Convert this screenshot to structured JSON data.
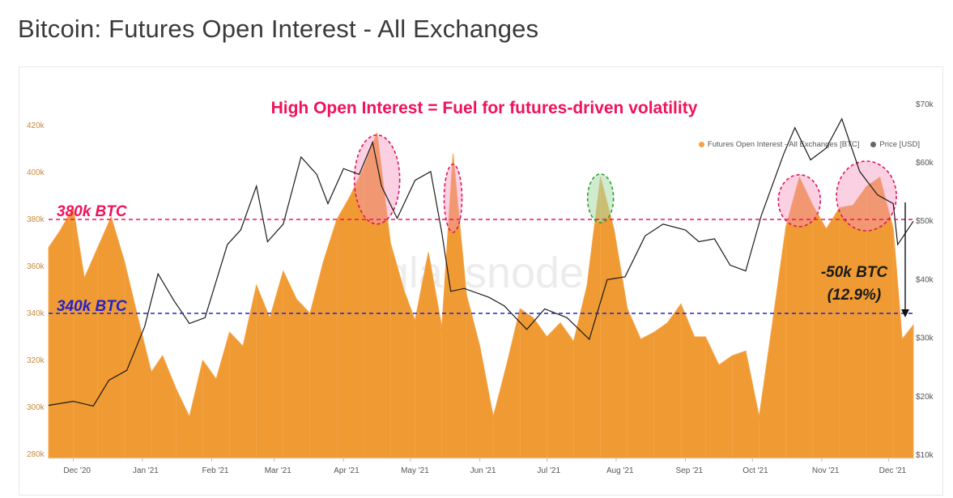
{
  "page": {
    "title": "Bitcoin: Futures Open Interest - All Exchanges"
  },
  "legend": {
    "oi_label": "Futures Open Interest - All Exchanges [BTC]",
    "price_label": "Price [USD]"
  },
  "annotations": {
    "headline": "High Open Interest = Fuel for futures-driven volatility",
    "line_380": "380k BTC",
    "line_340": "340k BTC",
    "drop_line1": "-50k BTC",
    "drop_line2": "(12.9%)",
    "watermark": "glassnode"
  },
  "colors": {
    "oi": "#f5a347",
    "oi_fill": "#ef9a33",
    "price": "#1a1a1a",
    "red_dashed": "#f0125a",
    "blue_dashed": "#2222cc",
    "pink_circle_fill": "rgba(245,150,190,0.45)",
    "green_circle_fill": "rgba(170,220,170,0.55)"
  },
  "chart_data": {
    "type": "area",
    "title": "Bitcoin: Futures Open Interest - All Exchanges",
    "x_ticks": [
      "Dec '20",
      "Jan '21",
      "Feb '21",
      "Mar '21",
      "Apr '21",
      "May '21",
      "Jun '21",
      "Jul '21",
      "Aug '21",
      "Sep '21",
      "Oct '21",
      "Nov '21",
      "Dec '21"
    ],
    "y_left_ticks": [
      "280k",
      "300k",
      "320k",
      "340k",
      "360k",
      "380k",
      "400k",
      "420k"
    ],
    "y_left_range": [
      280000,
      430000
    ],
    "y_right_ticks": [
      "$10k",
      "$20k",
      "$30k",
      "$40k",
      "$50k",
      "$60k",
      "$70k"
    ],
    "y_right_range": [
      10000,
      70000
    ],
    "reference_lines": [
      {
        "label": "380k BTC",
        "value": 380000
      },
      {
        "label": "340k BTC",
        "value": 340000
      }
    ],
    "series": [
      {
        "name": "Futures Open Interest - All Exchanges [BTC]",
        "axis": "left",
        "x": [
          "2020-11-20",
          "2020-11-25",
          "2020-12-01",
          "2020-12-06",
          "2020-12-12",
          "2020-12-18",
          "2020-12-24",
          "2020-12-30",
          "2021-01-05",
          "2021-01-10",
          "2021-01-16",
          "2021-01-22",
          "2021-01-28",
          "2021-02-03",
          "2021-02-09",
          "2021-02-15",
          "2021-02-21",
          "2021-02-27",
          "2021-03-05",
          "2021-03-11",
          "2021-03-17",
          "2021-03-23",
          "2021-03-29",
          "2021-04-04",
          "2021-04-10",
          "2021-04-16",
          "2021-04-22",
          "2021-04-28",
          "2021-05-03",
          "2021-05-09",
          "2021-05-15",
          "2021-05-20",
          "2021-05-26",
          "2021-06-01",
          "2021-06-07",
          "2021-06-13",
          "2021-06-19",
          "2021-06-25",
          "2021-07-01",
          "2021-07-07",
          "2021-07-13",
          "2021-07-19",
          "2021-07-25",
          "2021-07-31",
          "2021-08-06",
          "2021-08-12",
          "2021-08-18",
          "2021-08-24",
          "2021-08-30",
          "2021-09-05",
          "2021-09-10",
          "2021-09-16",
          "2021-09-22",
          "2021-09-28",
          "2021-10-04",
          "2021-10-10",
          "2021-10-16",
          "2021-10-22",
          "2021-10-28",
          "2021-11-03",
          "2021-11-09",
          "2021-11-15",
          "2021-11-21",
          "2021-11-27",
          "2021-12-03",
          "2021-12-07",
          "2021-12-12"
        ],
        "values": [
          368000,
          375000,
          385000,
          355000,
          368000,
          381000,
          362000,
          338000,
          315000,
          322000,
          308000,
          296000,
          320000,
          312000,
          332000,
          326000,
          352000,
          338000,
          358000,
          346000,
          340000,
          362000,
          380000,
          390000,
          402000,
          417000,
          370000,
          350000,
          337000,
          366000,
          334000,
          408000,
          348000,
          326000,
          296000,
          318000,
          342000,
          338000,
          330000,
          336000,
          328000,
          352000,
          398000,
          376000,
          342000,
          329000,
          332000,
          336000,
          344000,
          330000,
          330000,
          318000,
          322000,
          324000,
          296000,
          336000,
          377000,
          398000,
          386000,
          376000,
          385000,
          386000,
          394000,
          398000,
          376000,
          329000,
          335000
        ]
      },
      {
        "name": "Price [USD]",
        "axis": "right",
        "x": [
          "2020-11-20",
          "2020-12-01",
          "2020-12-10",
          "2020-12-17",
          "2020-12-25",
          "2021-01-02",
          "2021-01-08",
          "2021-01-15",
          "2021-01-22",
          "2021-01-29",
          "2021-02-08",
          "2021-02-14",
          "2021-02-21",
          "2021-02-26",
          "2021-03-05",
          "2021-03-13",
          "2021-03-20",
          "2021-03-25",
          "2021-04-01",
          "2021-04-08",
          "2021-04-14",
          "2021-04-18",
          "2021-04-25",
          "2021-05-03",
          "2021-05-10",
          "2021-05-15",
          "2021-05-19",
          "2021-05-25",
          "2021-06-05",
          "2021-06-12",
          "2021-06-22",
          "2021-06-30",
          "2021-07-10",
          "2021-07-20",
          "2021-07-28",
          "2021-08-05",
          "2021-08-14",
          "2021-08-22",
          "2021-09-01",
          "2021-09-07",
          "2021-09-14",
          "2021-09-21",
          "2021-09-28",
          "2021-10-05",
          "2021-10-15",
          "2021-10-20",
          "2021-10-27",
          "2021-11-03",
          "2021-11-10",
          "2021-11-18",
          "2021-11-26",
          "2021-12-03",
          "2021-12-05",
          "2021-12-12"
        ],
        "values": [
          18500,
          19200,
          18400,
          22800,
          24500,
          32000,
          41000,
          36500,
          32500,
          33500,
          46000,
          48500,
          56000,
          46500,
          49500,
          61000,
          58000,
          53000,
          59000,
          58000,
          63500,
          56000,
          50500,
          57000,
          58500,
          48000,
          38000,
          38500,
          37000,
          35500,
          31500,
          35000,
          33500,
          29800,
          40000,
          40500,
          47500,
          49500,
          48500,
          46500,
          47000,
          42500,
          41500,
          51000,
          61500,
          66000,
          60500,
          62500,
          67500,
          58500,
          54500,
          53000,
          46000,
          50000
        ]
      }
    ]
  }
}
